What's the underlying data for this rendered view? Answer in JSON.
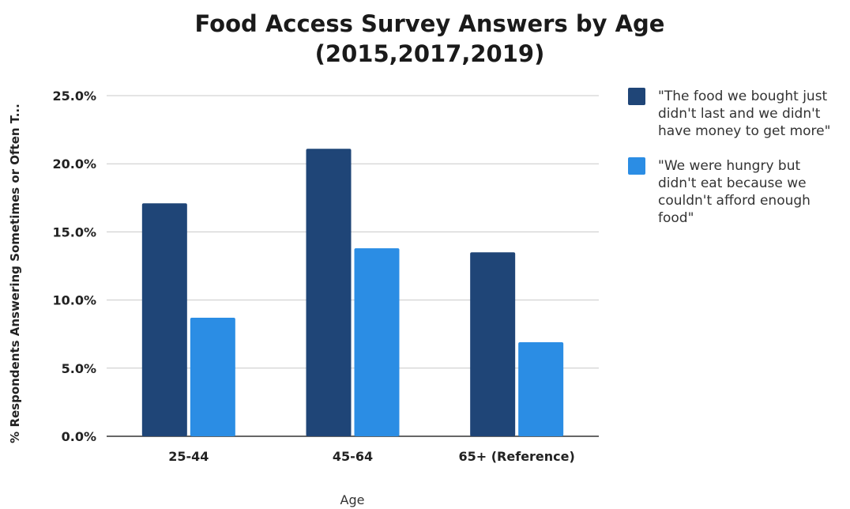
{
  "chart_data": {
    "type": "bar",
    "title": [
      "Food Access Survey Answers by Age",
      "(2015,2017,2019)"
    ],
    "xlabel": "Age",
    "ylabel": "% Respondents Answering Sometimes or Often T...",
    "categories": [
      "25-44",
      "45-64",
      "65+ (Reference)"
    ],
    "ylim": [
      0,
      25
    ],
    "yticks": [
      "0.0%",
      "5.0%",
      "10.0%",
      "15.0%",
      "20.0%",
      "25.0%"
    ],
    "ytick_values": [
      0,
      5,
      10,
      15,
      20,
      25
    ],
    "grid": true,
    "legend_position": "right",
    "series": [
      {
        "name": "\"The food we bought just didn't last  and we didn't have money to get more\"",
        "legend_lines": [
          " \"The food we bought just",
          "didn't last  and we didn't",
          "have money to get more\""
        ],
        "color": "#1f4577",
        "values": [
          17.1,
          21.1,
          13.5
        ]
      },
      {
        "name": "\"We were hungry but didn't eat because we couldn't afford enough food\"",
        "legend_lines": [
          "\"We were hungry but",
          "didn't eat because we",
          "couldn't afford enough",
          "food\""
        ],
        "color": "#2b8de4",
        "values": [
          8.7,
          13.8,
          6.9
        ]
      }
    ]
  }
}
